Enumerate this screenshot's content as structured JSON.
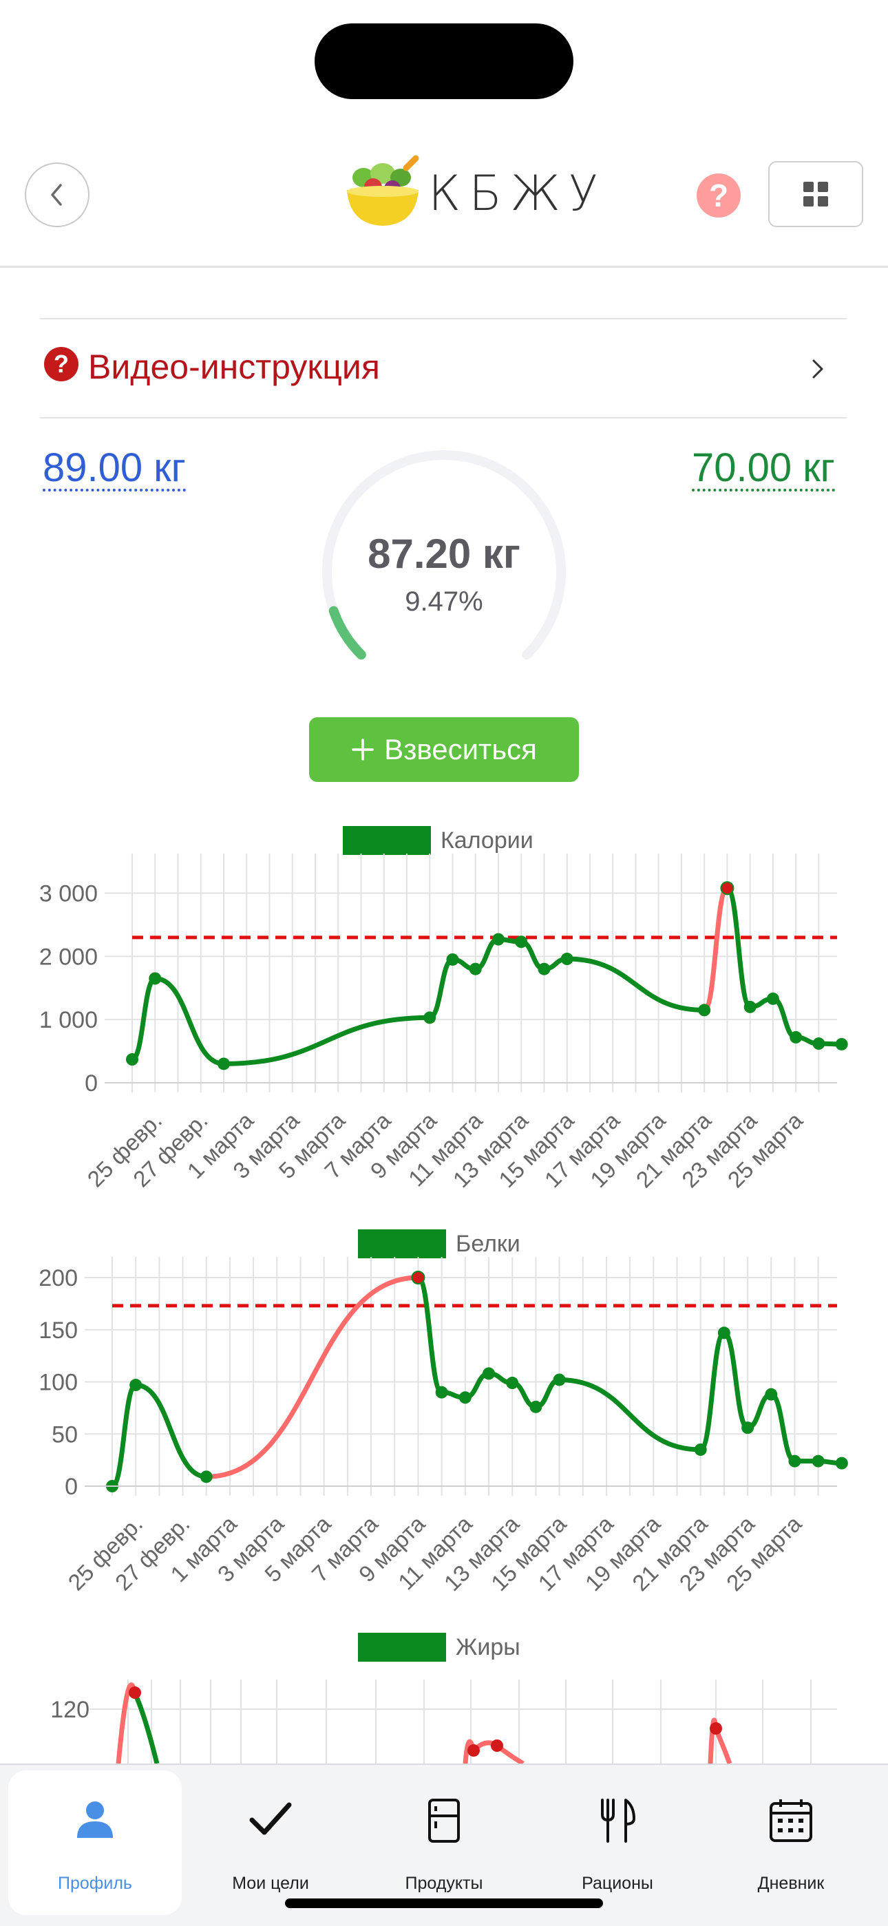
{
  "header": {
    "logo_text": "КБЖУ",
    "help_icon": "question-icon",
    "menu_icon": "grid-icon",
    "back_icon": "chevron-left-icon"
  },
  "video": {
    "label": "Видео-инструкция",
    "icon": "question-icon"
  },
  "weight": {
    "start": "89.00 кг",
    "goal": "70.00 кг",
    "current": "87.20 кг",
    "percent": "9.47%",
    "progress_fraction": 0.0947
  },
  "weigh_button": {
    "label": "Взвеситься"
  },
  "colors": {
    "series": "#0a8a1f",
    "over": "#ff6b6b",
    "target_line": "#e01010",
    "accent_blue": "#2f5ed6",
    "button": "#5ec140"
  },
  "chart_data": [
    {
      "type": "line",
      "title": "Калории",
      "legend": "Калории",
      "x_ticks": [
        "25 февр.",
        "27 февр.",
        "1 марта",
        "3 марта",
        "5 марта",
        "7 марта",
        "9 марта",
        "11 марта",
        "13 марта",
        "15 марта",
        "17 марта",
        "19 марта",
        "21 марта",
        "23 марта",
        "25 марта"
      ],
      "y_ticks": [
        "0",
        "1 000",
        "2 000",
        "3 000"
      ],
      "ylim": [
        0,
        3300
      ],
      "target": 2300,
      "points": [
        {
          "x": "24 февр.",
          "y": 370
        },
        {
          "x": "25 февр.",
          "y": 1650
        },
        {
          "x": "28 февр.",
          "y": 300
        },
        {
          "x": "8 марта",
          "y": 1030
        },
        {
          "x": "9 марта",
          "y": 1950
        },
        {
          "x": "10 марта",
          "y": 1800
        },
        {
          "x": "11 марта",
          "y": 2270
        },
        {
          "x": "12 марта",
          "y": 2230
        },
        {
          "x": "13 марта",
          "y": 1800
        },
        {
          "x": "14 марта",
          "y": 1960
        },
        {
          "x": "20 марта",
          "y": 1150
        },
        {
          "x": "21 марта",
          "y": 3080
        },
        {
          "x": "22 марта",
          "y": 1200
        },
        {
          "x": "23 марта",
          "y": 1330
        },
        {
          "x": "24 марта",
          "y": 720
        },
        {
          "x": "25 марта",
          "y": 620
        },
        {
          "x": "26 марта",
          "y": 610
        }
      ],
      "grid": true
    },
    {
      "type": "line",
      "title": "Белки",
      "legend": "Белки",
      "x_ticks": [
        "25 февр.",
        "27 февр.",
        "1 марта",
        "3 марта",
        "5 марта",
        "7 марта",
        "9 марта",
        "11 марта",
        "13 марта",
        "15 марта",
        "17 марта",
        "19 марта",
        "21 марта",
        "23 марта",
        "25 марта"
      ],
      "y_ticks": [
        "0",
        "50",
        "100",
        "150",
        "200"
      ],
      "ylim": [
        0,
        200
      ],
      "target": 173,
      "points": [
        {
          "x": "24 февр.",
          "y": 0
        },
        {
          "x": "25 февр.",
          "y": 97
        },
        {
          "x": "28 февр.",
          "y": 9
        },
        {
          "x": "8 марта",
          "y": 200
        },
        {
          "x": "9 марта",
          "y": 90
        },
        {
          "x": "10 марта",
          "y": 85
        },
        {
          "x": "11 марта",
          "y": 108
        },
        {
          "x": "12 марта",
          "y": 99
        },
        {
          "x": "13 марта",
          "y": 76
        },
        {
          "x": "14 марта",
          "y": 102
        },
        {
          "x": "20 марта",
          "y": 35
        },
        {
          "x": "21 марта",
          "y": 147
        },
        {
          "x": "22 марта",
          "y": 56
        },
        {
          "x": "23 марта",
          "y": 88
        },
        {
          "x": "24 марта",
          "y": 24
        },
        {
          "x": "25 марта",
          "y": 24
        },
        {
          "x": "26 марта",
          "y": 22
        }
      ],
      "grid": true
    },
    {
      "type": "line",
      "title": "Жиры",
      "legend": "Жиры",
      "y_ticks": [
        "120"
      ],
      "points": [
        {
          "x": "25 февр.",
          "y": 130
        },
        {
          "x": "11 марта",
          "y": 110
        },
        {
          "x": "12 марта",
          "y": 112
        },
        {
          "x": "21 марта",
          "y": 125
        }
      ],
      "grid": true
    }
  ],
  "tabbar": [
    {
      "label": "Профиль",
      "icon": "person-icon",
      "active": true
    },
    {
      "label": "Мои цели",
      "icon": "checkmark-icon",
      "active": false
    },
    {
      "label": "Продукты",
      "icon": "fridge-icon",
      "active": false
    },
    {
      "label": "Рационы",
      "icon": "fork-knife-icon",
      "active": false
    },
    {
      "label": "Дневник",
      "icon": "calendar-icon",
      "active": false
    }
  ]
}
